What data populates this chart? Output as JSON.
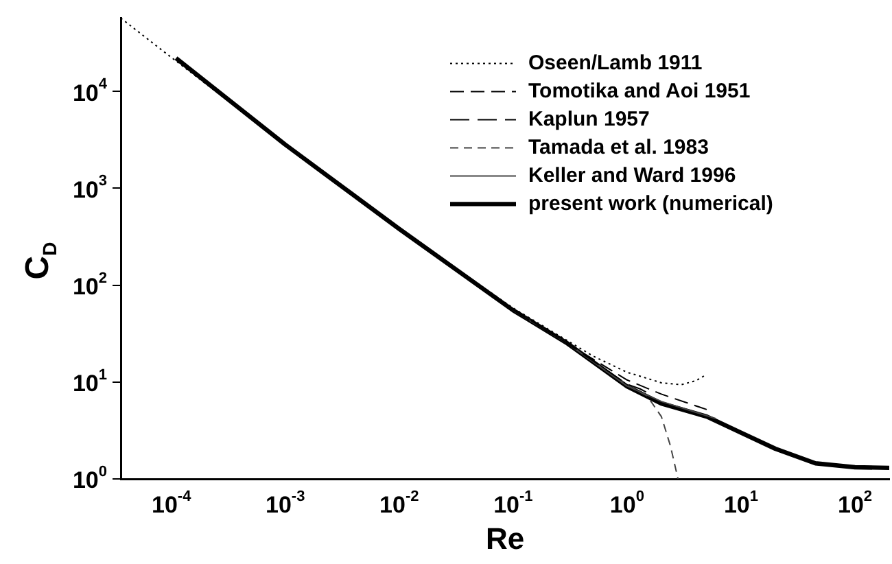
{
  "chart_data": {
    "type": "line",
    "xlabel": "Re",
    "ylabel": "C$_{D}$",
    "log": "xy",
    "grid": false,
    "legend": "top right",
    "marker": "none",
    "xlim": [
      3.6e-05,
      200
    ],
    "ylim": [
      1,
      57000
    ],
    "xticks": [
      {
        "value": 0.0001,
        "label": "10$^{-4}$"
      },
      {
        "value": 0.001,
        "label": "10$^{-3}$"
      },
      {
        "value": 0.01,
        "label": "10$^{-2}$"
      },
      {
        "value": 0.1,
        "label": "10$^{-1}$"
      },
      {
        "value": 1,
        "label": "10$^{0}$"
      },
      {
        "value": 10,
        "label": "10$^{1}$"
      },
      {
        "value": 100,
        "label": "10$^{2}$"
      }
    ],
    "yticks": [
      {
        "value": 1,
        "label": "10$^{0}$"
      },
      {
        "value": 10,
        "label": "10$^{1}$"
      },
      {
        "value": 100,
        "label": "10$^{2}$"
      },
      {
        "value": 1000,
        "label": "10$^{3}$"
      },
      {
        "value": 10000,
        "label": "10$^{4}$"
      }
    ],
    "series": [
      {
        "name": "Oseen/Lamb 1911",
        "color": "#000000",
        "line_style": "dotted",
        "x": [
          3.6e-05,
          0.0001,
          0.001,
          0.01,
          0.1,
          0.5,
          1,
          1.3,
          2,
          3,
          4,
          5
        ],
        "values": [
          57000,
          22400,
          2820,
          380,
          58,
          18.6,
          12.6,
          11.5,
          9.8,
          9.4,
          10.3,
          12
        ]
      },
      {
        "name": "Tomotika and Aoi 1951",
        "color": "#000000",
        "line_style": "dashed",
        "x": [
          0.1,
          0.3,
          1,
          2,
          5
        ],
        "values": [
          56,
          25,
          10.5,
          7.5,
          5.2
        ]
      },
      {
        "name": "Kaplun 1957",
        "color": "#000000",
        "line_style": "dashed",
        "x": [
          0.1,
          0.3,
          1,
          1.3,
          1.6
        ],
        "values": [
          55,
          25,
          9.5,
          8.5,
          7.5
        ]
      },
      {
        "name": "Tamada et al. 1983",
        "color": "#444444",
        "line_style": "dashed",
        "x": [
          0.1,
          0.3,
          1,
          1.5,
          2,
          2.4,
          2.8
        ],
        "values": [
          55,
          25,
          9.3,
          7.2,
          4.4,
          2.2,
          1
        ]
      },
      {
        "name": "Keller and Ward 1996",
        "color": "#444444",
        "line_style": "solid",
        "x": [
          0.1,
          0.3,
          1,
          2,
          6
        ],
        "values": [
          55,
          25,
          9.1,
          6.3,
          4.2
        ]
      },
      {
        "name": "present work (numerical)",
        "color": "#000000",
        "line_style": "solid",
        "x": [
          0.00011,
          0.001,
          0.01,
          0.1,
          0.3,
          1,
          2,
          5,
          10,
          20,
          45,
          100,
          200
        ],
        "values": [
          22000,
          2820,
          380,
          55,
          25,
          9,
          6,
          4.4,
          3,
          2.05,
          1.45,
          1.32,
          1.3
        ]
      }
    ]
  }
}
